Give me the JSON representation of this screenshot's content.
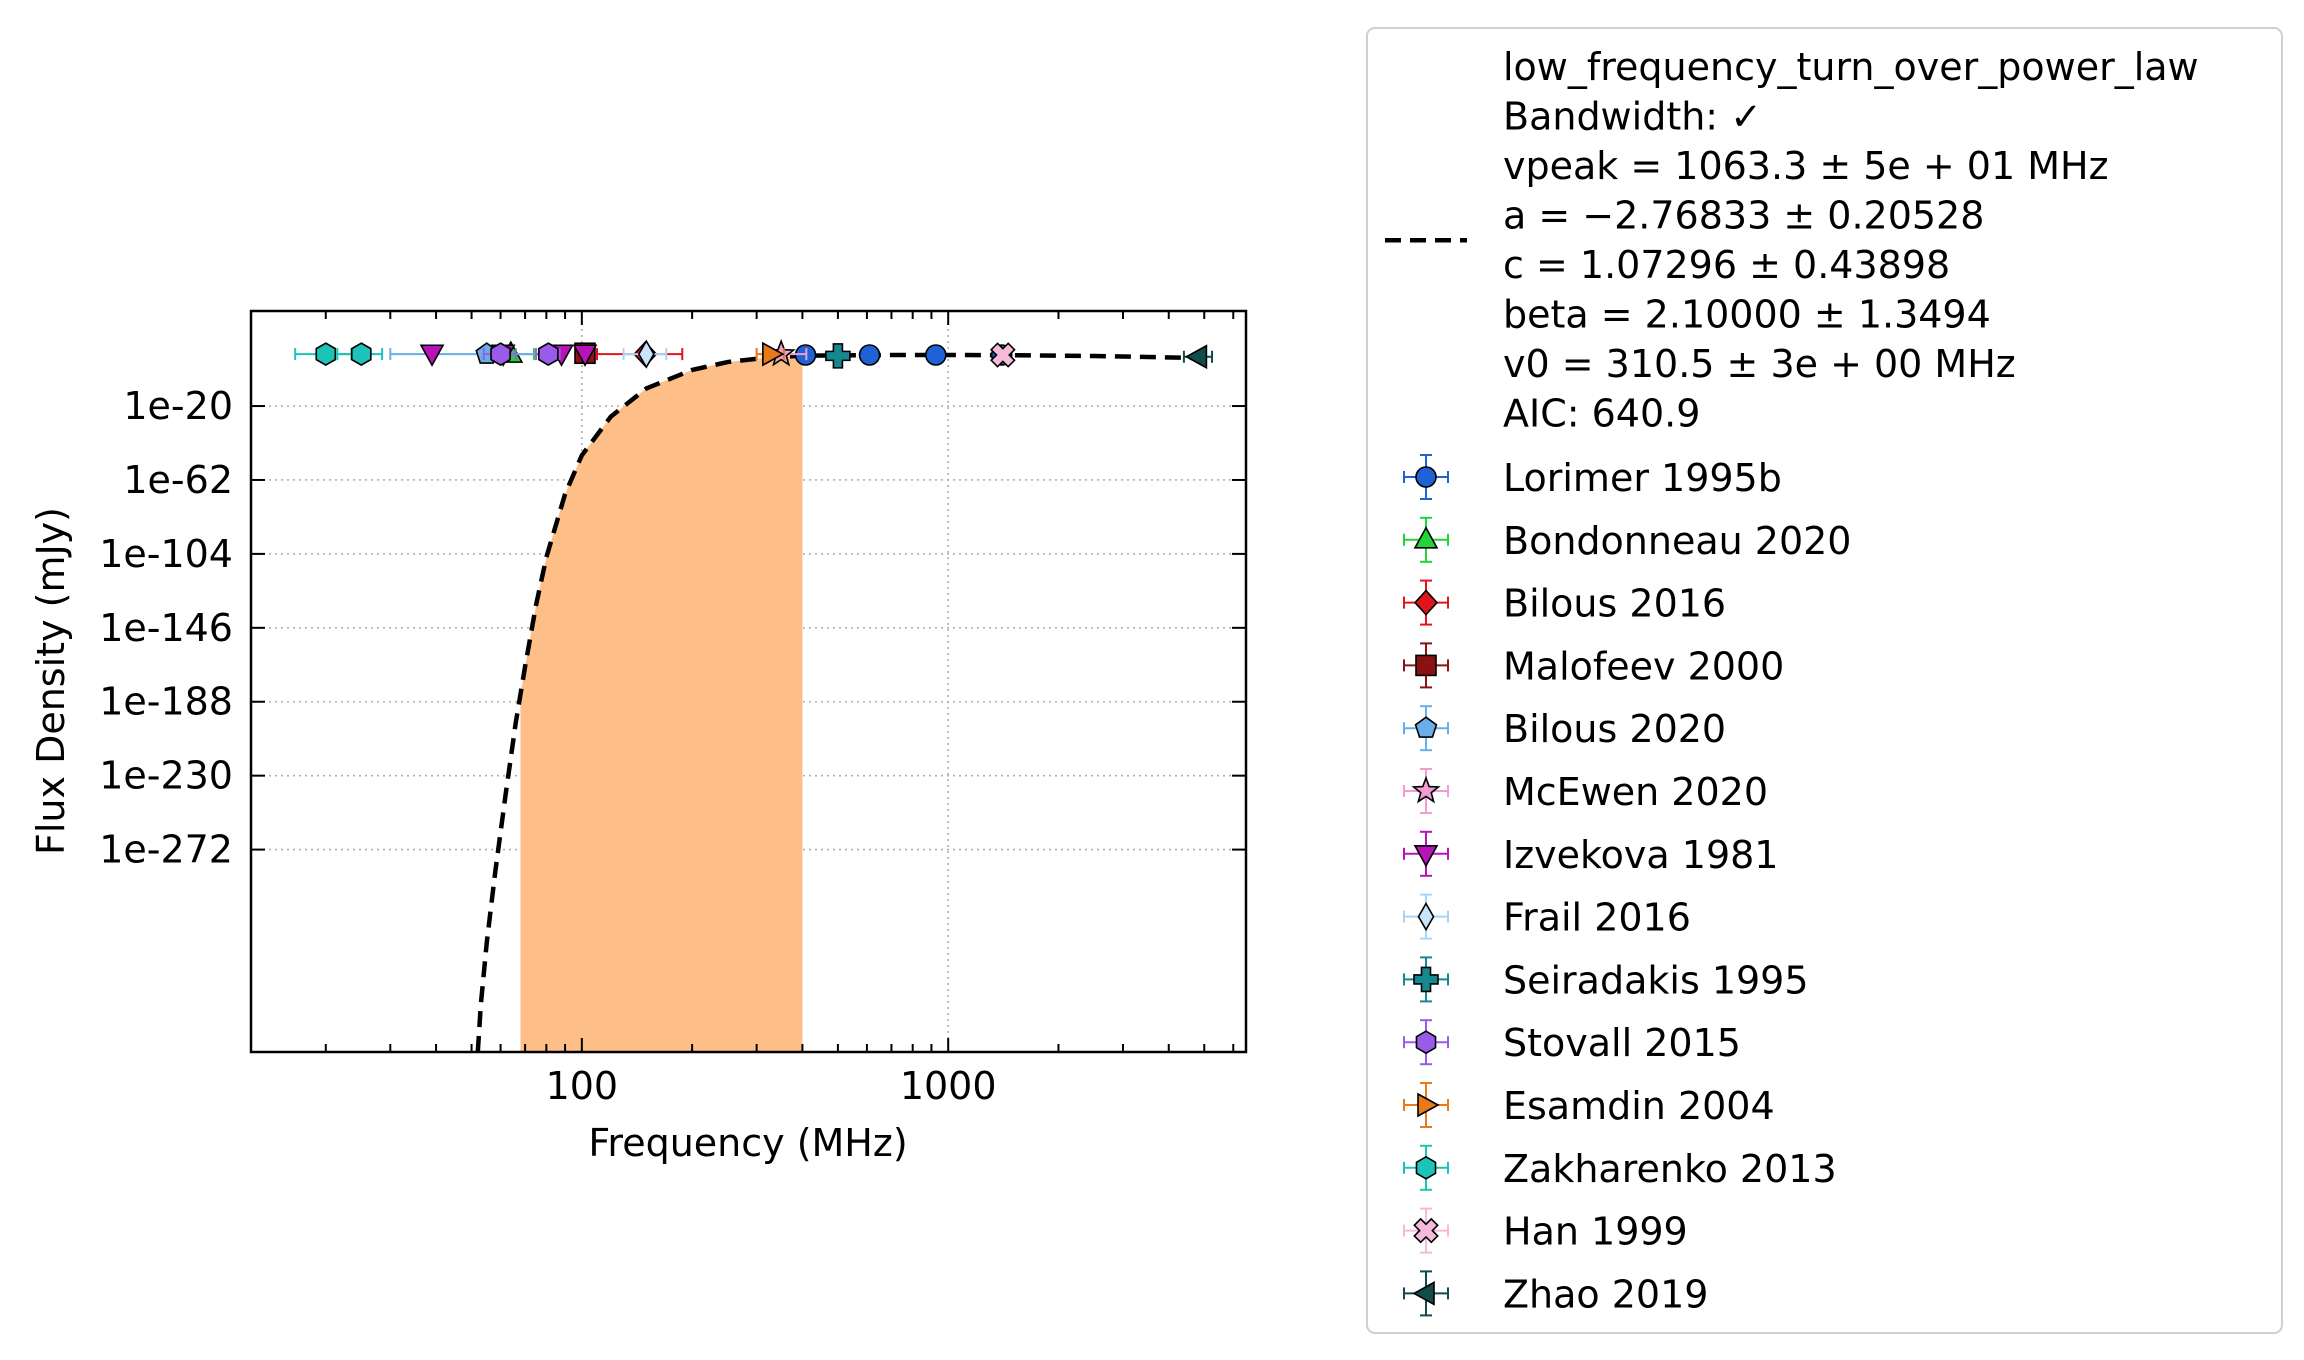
{
  "chart_data": {
    "type": "scatter",
    "title": "",
    "xlabel": "Frequency (MHz)",
    "ylabel": "Flux Density (mJy)",
    "xscale": "log",
    "xlim": [
      12.5,
      6500
    ],
    "ylim_log10": [
      -387,
      34
    ],
    "grid": true,
    "legend_placement": "outside-right",
    "x_ticks": [
      {
        "value": 100,
        "label": "100"
      },
      {
        "value": 1000,
        "label": "1000"
      }
    ],
    "y_ticks": [
      {
        "log10": -20,
        "label": "1e-20"
      },
      {
        "log10": -62,
        "label": "1e-62"
      },
      {
        "log10": -104,
        "label": "1e-104"
      },
      {
        "log10": -146,
        "label": "1e-146"
      },
      {
        "log10": -188,
        "label": "1e-188"
      },
      {
        "log10": -230,
        "label": "1e-230"
      },
      {
        "log10": -272,
        "label": "1e-272"
      }
    ],
    "fit": {
      "name": "low_frequency_turn_over_power_law",
      "style": "dashed",
      "color": "#000000",
      "text_lines": [
        "low_frequency_turn_over_power_law",
        "Bandwidth: ✓",
        "vpeak = 1063.3 ± 5e + 01 MHz",
        "a = −2.76833 ± 0.20528",
        "c = 1.07296 ± 0.43898",
        "beta = 2.10000 ± 1.3494",
        "v0 = 310.5 ± 3e + 00 MHz",
        "AIC: 640.9"
      ],
      "curve": [
        {
          "x": 52,
          "log10y": -387
        },
        {
          "x": 53,
          "log10y": -360
        },
        {
          "x": 55,
          "log10y": -325
        },
        {
          "x": 58,
          "log10y": -285
        },
        {
          "x": 62,
          "log10y": -240
        },
        {
          "x": 66,
          "log10y": -200
        },
        {
          "x": 70,
          "log10y": -168
        },
        {
          "x": 75,
          "log10y": -133
        },
        {
          "x": 80,
          "log10y": -106
        },
        {
          "x": 90,
          "log10y": -70
        },
        {
          "x": 100,
          "log10y": -48
        },
        {
          "x": 120,
          "log10y": -26
        },
        {
          "x": 150,
          "log10y": -10
        },
        {
          "x": 200,
          "log10y": 0.5
        },
        {
          "x": 250,
          "log10y": 5
        },
        {
          "x": 320,
          "log10y": 7.5
        },
        {
          "x": 400,
          "log10y": 8.6
        },
        {
          "x": 500,
          "log10y": 8.8
        },
        {
          "x": 700,
          "log10y": 9
        },
        {
          "x": 1000,
          "log10y": 9
        },
        {
          "x": 1500,
          "log10y": 8.9
        },
        {
          "x": 2500,
          "log10y": 8.4
        },
        {
          "x": 3500,
          "log10y": 7.9
        },
        {
          "x": 4500,
          "log10y": 7.4
        },
        {
          "x": 5000,
          "log10y": 7.2
        }
      ]
    },
    "fill_region": {
      "color": "#fdbf87",
      "x_range": [
        68,
        400
      ]
    },
    "series": [
      {
        "name": "Lorimer 1995b",
        "marker": "circle",
        "color": "#1f62d6",
        "ecolor": "#1f62d6",
        "points": [
          {
            "x": 408,
            "log10y": 9,
            "xerr": [
              0,
              0
            ]
          },
          {
            "x": 610,
            "log10y": 9,
            "xerr": [
              0,
              0
            ]
          },
          {
            "x": 925,
            "log10y": 9,
            "xerr": [
              0,
              0
            ]
          },
          {
            "x": 1400,
            "log10y": 9,
            "xerr": [
              0,
              0
            ]
          }
        ]
      },
      {
        "name": "Bondonneau 2020",
        "marker": "triangle-up",
        "color": "#22d33a",
        "ecolor": "#22d33a",
        "points": [
          {
            "x": 64,
            "log10y": 9.5,
            "xerr": [
              54,
              74
            ]
          }
        ]
      },
      {
        "name": "Bilous 2016",
        "marker": "diamond",
        "color": "#e2141b",
        "ecolor": "#e2141b",
        "points": [
          {
            "x": 149,
            "log10y": 9.5,
            "xerr": [
              110,
              188
            ]
          }
        ]
      },
      {
        "name": "Malofeev 2000",
        "marker": "square",
        "color": "#8b1212",
        "ecolor": "#8b1212",
        "points": [
          {
            "x": 102,
            "log10y": 10,
            "xerr": [
              102,
              102
            ]
          }
        ]
      },
      {
        "name": "Bilous 2020",
        "marker": "pentagon",
        "color": "#6aaee8",
        "ecolor": "#6aaee8",
        "points": [
          {
            "x": 55,
            "log10y": 9.5,
            "xerr": [
              30,
              80
            ]
          }
        ]
      },
      {
        "name": "McEwen 2020",
        "marker": "star",
        "color": "#f29cd1",
        "ecolor": "#f29cd1",
        "points": [
          {
            "x": 350,
            "log10y": 9.5,
            "xerr": [
              300,
              410
            ]
          }
        ]
      },
      {
        "name": "Izvekova 1981",
        "marker": "triangle-down",
        "color": "#b614b8",
        "ecolor": "#b614b8",
        "points": [
          {
            "x": 39,
            "log10y": 10,
            "xerr": [
              39,
              39
            ]
          },
          {
            "x": 61,
            "log10y": 10,
            "xerr": [
              61,
              61
            ]
          },
          {
            "x": 88,
            "log10y": 10,
            "xerr": [
              88,
              88
            ]
          },
          {
            "x": 102,
            "log10y": 10,
            "xerr": [
              102,
              102
            ]
          }
        ]
      },
      {
        "name": "Frail 2016",
        "marker": "thin-diamond",
        "color": "#c7e4fb",
        "ecolor": "#a9d4f5",
        "points": [
          {
            "x": 150,
            "log10y": 9.5,
            "xerr": [
              130,
              170
            ]
          }
        ]
      },
      {
        "name": "Seiradakis 1995",
        "marker": "plus",
        "color": "#14898f",
        "ecolor": "#14898f",
        "points": [
          {
            "x": 500,
            "log10y": 8.5,
            "xerr": [
              0,
              0
            ]
          }
        ]
      },
      {
        "name": "Stovall 2015",
        "marker": "hexagon",
        "color": "#9a5be8",
        "ecolor": "#9a5be8",
        "points": [
          {
            "x": 60,
            "log10y": 9.5,
            "xerr": [
              54,
              66
            ]
          },
          {
            "x": 81,
            "log10y": 9.5,
            "xerr": [
              75,
              87
            ]
          }
        ]
      },
      {
        "name": "Esamdin 2004",
        "marker": "triangle-right",
        "color": "#e87a1a",
        "ecolor": "#e87a1a",
        "points": [
          {
            "x": 328,
            "log10y": 9.5,
            "xerr": [
              300,
              356
            ]
          }
        ]
      },
      {
        "name": "Zakharenko 2013",
        "marker": "hexagon",
        "color": "#1cc3b8",
        "ecolor": "#1cc3b8",
        "points": [
          {
            "x": 20,
            "log10y": 9.5,
            "xerr": [
              16.5,
              23.5
            ]
          },
          {
            "x": 25,
            "log10y": 9.5,
            "xerr": [
              21.5,
              28.5
            ]
          }
        ]
      },
      {
        "name": "Han 1999",
        "marker": "x-filled",
        "color": "#f5b9d9",
        "ecolor": "#f5b9d9",
        "points": [
          {
            "x": 1410,
            "log10y": 9,
            "xerr": [
              1390,
              1430
            ]
          }
        ]
      },
      {
        "name": "Zhao 2019",
        "marker": "triangle-left",
        "color": "#124b4b",
        "ecolor": "#124b4b",
        "points": [
          {
            "x": 4820,
            "log10y": 8,
            "xerr": [
              4400,
              5250
            ]
          }
        ]
      }
    ]
  }
}
